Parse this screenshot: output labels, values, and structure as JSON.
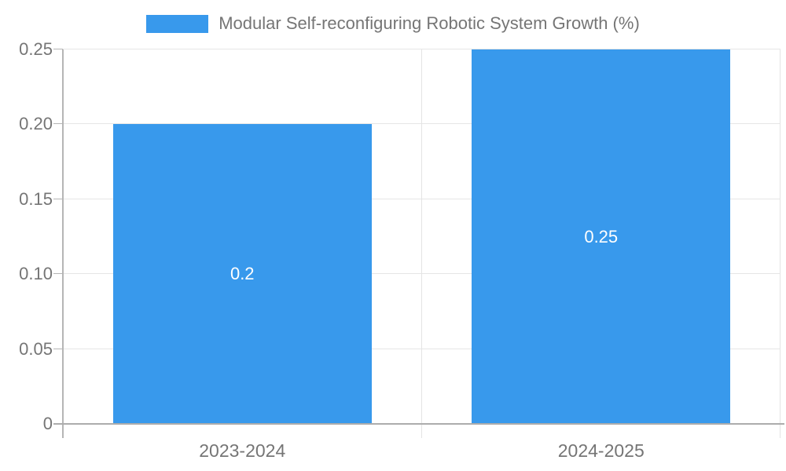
{
  "legend": {
    "label": "Modular Self-reconfiguring Robotic System Growth (%)"
  },
  "chart_data": {
    "type": "bar",
    "title": "Modular Self-reconfiguring Robotic System Growth (%)",
    "categories": [
      "2023-2024",
      "2024-2025"
    ],
    "values": [
      0.2,
      0.25
    ],
    "bar_labels": [
      "0.2",
      "0.25"
    ],
    "y_ticks": [
      {
        "label": "0",
        "value": 0
      },
      {
        "label": "0.05",
        "value": 0.05
      },
      {
        "label": "0.10",
        "value": 0.1
      },
      {
        "label": "0.15",
        "value": 0.15
      },
      {
        "label": "0.20",
        "value": 0.2
      },
      {
        "label": "0.25",
        "value": 0.25
      }
    ],
    "ylim": [
      0,
      0.25
    ],
    "bar_color": "#3899EC",
    "label_color": "#757575",
    "grid": true,
    "legend_position": "top"
  }
}
